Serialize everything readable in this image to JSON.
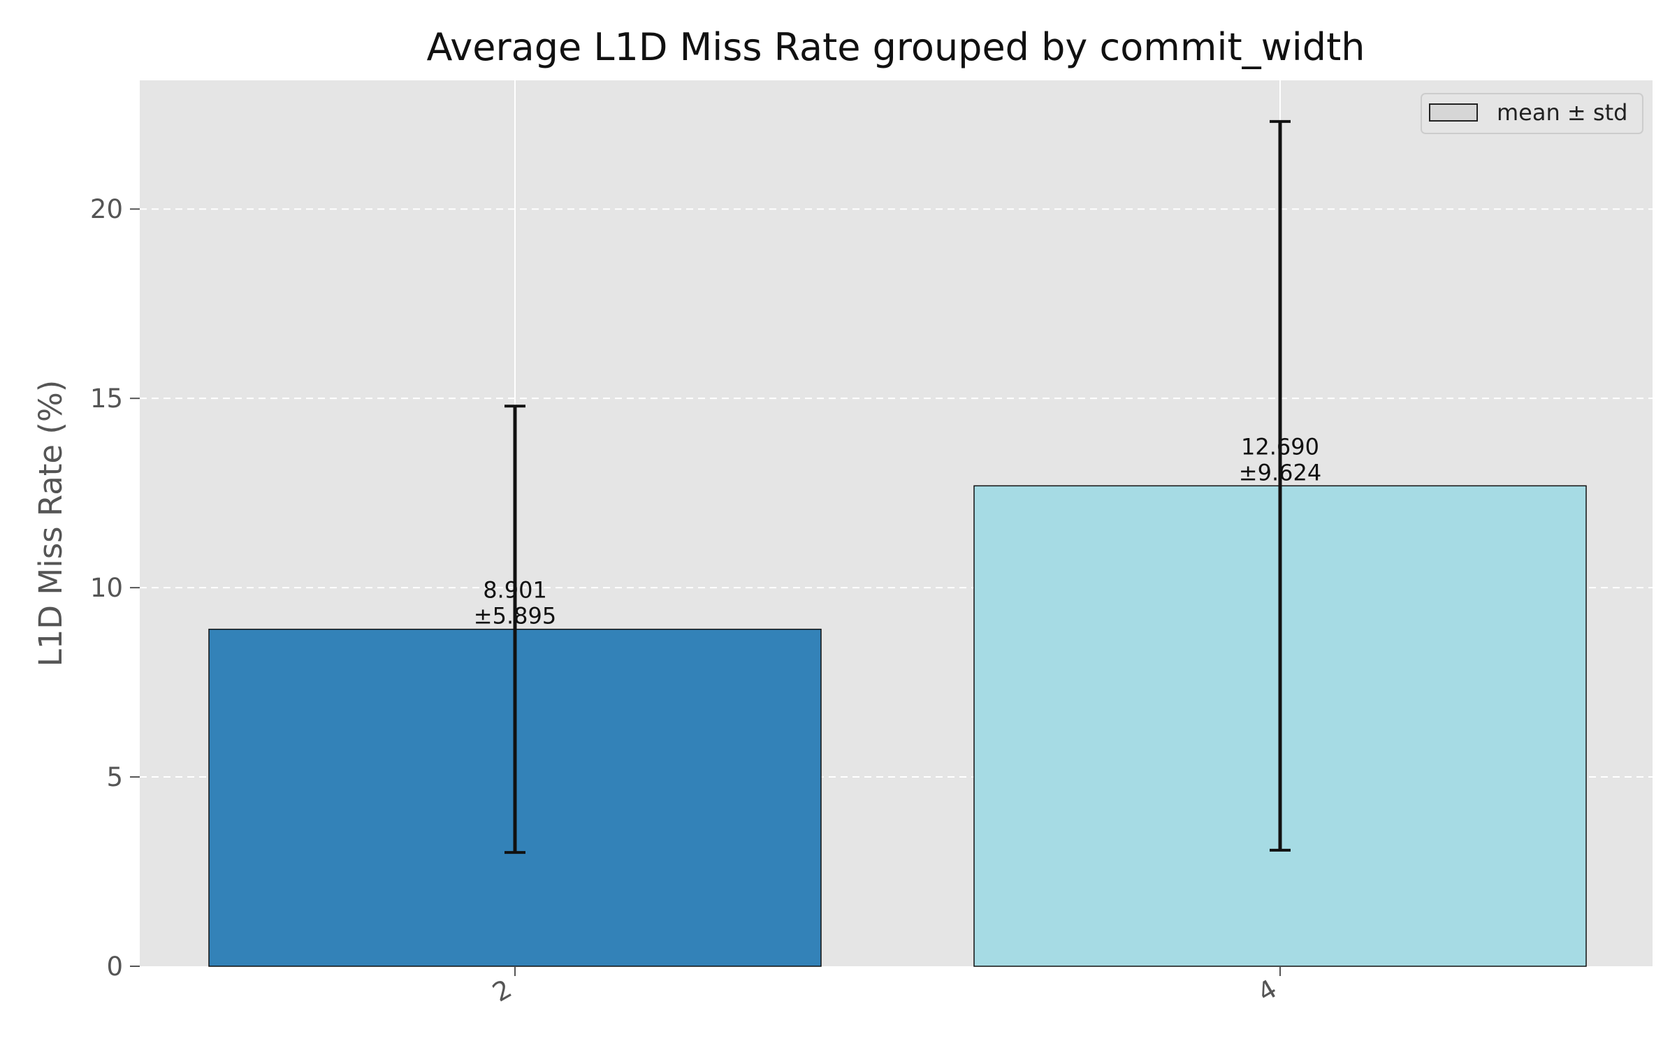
{
  "chart_data": {
    "type": "bar",
    "title": "Average L1D Miss Rate grouped by commit_width",
    "xlabel": "",
    "ylabel": "L1D Miss Rate (%)",
    "categories": [
      "2",
      "4"
    ],
    "values": [
      8.901,
      12.69
    ],
    "errors": [
      5.895,
      9.624
    ],
    "data_labels": [
      [
        "8.901",
        "±5.895"
      ],
      [
        "12.690",
        "±9.624"
      ]
    ],
    "colors": [
      "#3382b8",
      "#a6dbe4"
    ],
    "ylim": [
      0,
      23.4
    ],
    "yticks": [
      0,
      5,
      10,
      15,
      20
    ],
    "ytick_labels": [
      "0",
      "5",
      "10",
      "15",
      "20"
    ],
    "grid": true,
    "legend": {
      "label": "mean ± std",
      "placement": "top-right"
    },
    "plot_background": "#e5e5e5"
  }
}
